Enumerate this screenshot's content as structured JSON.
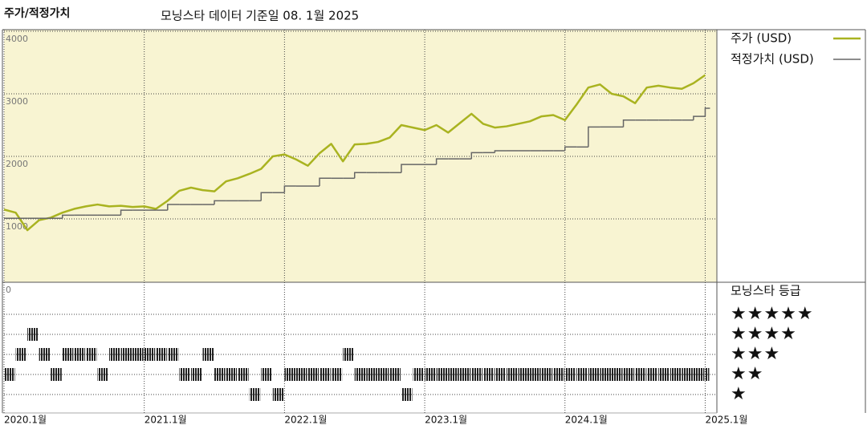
{
  "chart_data": [
    {
      "type": "line",
      "title": "주가/적정가치",
      "subtitle": "모닝스타 데이터 기준일 08. 1월 2025",
      "x": [
        "2020-01",
        "2020-02",
        "2020-03",
        "2020-04",
        "2020-05",
        "2020-06",
        "2020-07",
        "2020-08",
        "2020-09",
        "2020-10",
        "2020-11",
        "2020-12",
        "2021-01",
        "2021-02",
        "2021-03",
        "2021-04",
        "2021-05",
        "2021-06",
        "2021-07",
        "2021-08",
        "2021-09",
        "2021-10",
        "2021-11",
        "2021-12",
        "2022-01",
        "2022-02",
        "2022-03",
        "2022-04",
        "2022-05",
        "2022-06",
        "2022-07",
        "2022-08",
        "2022-09",
        "2022-10",
        "2022-11",
        "2022-12",
        "2023-01",
        "2023-02",
        "2023-03",
        "2023-04",
        "2023-05",
        "2023-06",
        "2023-07",
        "2023-08",
        "2023-09",
        "2023-10",
        "2023-11",
        "2023-12",
        "2024-01",
        "2024-02",
        "2024-03",
        "2024-04",
        "2024-05",
        "2024-06",
        "2024-07",
        "2024-08",
        "2024-09",
        "2024-10",
        "2024-11",
        "2024-12",
        "2025-01"
      ],
      "xlim": [
        "2020-01",
        "2025-02"
      ],
      "xticks": [
        "2020-01",
        "2021-01",
        "2022-01",
        "2023-01",
        "2024-01",
        "2025-01"
      ],
      "ylim": [
        0,
        4000
      ],
      "yticks": [
        1000,
        2000,
        3000,
        4000
      ],
      "grid": true,
      "series": [
        {
          "name": "주가 (USD)",
          "color": "#a9b320",
          "style": "line",
          "values": [
            1150,
            1100,
            820,
            980,
            1020,
            1100,
            1160,
            1200,
            1230,
            1200,
            1210,
            1190,
            1200,
            1160,
            1290,
            1450,
            1500,
            1460,
            1440,
            1600,
            1650,
            1720,
            1800,
            2000,
            2030,
            1950,
            1850,
            2050,
            2200,
            1920,
            2190,
            2200,
            2230,
            2300,
            2500,
            2460,
            2420,
            2500,
            2380,
            2530,
            2680,
            2520,
            2460,
            2480,
            2520,
            2560,
            2640,
            2660,
            2580,
            2830,
            3100,
            3150,
            3000,
            2960,
            2850,
            3100,
            3130,
            3100,
            3080,
            3170,
            3300
          ]
        },
        {
          "name": "적정가치 (USD)",
          "color": "#666666",
          "style": "step",
          "values": [
            1010,
            1010,
            1010,
            1010,
            1010,
            1060,
            1060,
            1060,
            1060,
            1060,
            1140,
            1140,
            1140,
            1140,
            1230,
            1230,
            1230,
            1230,
            1290,
            1290,
            1290,
            1290,
            1420,
            1420,
            1525,
            1525,
            1525,
            1650,
            1650,
            1650,
            1740,
            1740,
            1740,
            1740,
            1870,
            1870,
            1870,
            1960,
            1960,
            1960,
            2060,
            2060,
            2090,
            2090,
            2090,
            2090,
            2090,
            2090,
            2150,
            2150,
            2470,
            2470,
            2470,
            2580,
            2580,
            2580,
            2580,
            2580,
            2580,
            2640,
            2770
          ]
        }
      ]
    },
    {
      "type": "rating",
      "title": "모닝스타 등급",
      "corner_label": "0",
      "levels": [
        "★★★★★",
        "★★★★",
        "★★★",
        "★★",
        "★"
      ],
      "color": "#222222",
      "x": [
        "2020-01",
        "2020-02",
        "2020-03",
        "2020-04",
        "2020-05",
        "2020-06",
        "2020-07",
        "2020-08",
        "2020-09",
        "2020-10",
        "2020-11",
        "2020-12",
        "2021-01",
        "2021-02",
        "2021-03",
        "2021-04",
        "2021-05",
        "2021-06",
        "2021-07",
        "2021-08",
        "2021-09",
        "2021-10",
        "2021-11",
        "2021-12",
        "2022-01",
        "2022-02",
        "2022-03",
        "2022-04",
        "2022-05",
        "2022-06",
        "2022-07",
        "2022-08",
        "2022-09",
        "2022-10",
        "2022-11",
        "2022-12",
        "2023-01",
        "2023-02",
        "2023-03",
        "2023-04",
        "2023-05",
        "2023-06",
        "2023-07",
        "2023-08",
        "2023-09",
        "2023-10",
        "2023-11",
        "2023-12",
        "2024-01",
        "2024-02",
        "2024-03",
        "2024-04",
        "2024-05",
        "2024-06",
        "2024-07",
        "2024-08",
        "2024-09",
        "2024-10",
        "2024-11",
        "2024-12",
        "2025-01"
      ],
      "xlim": [
        "2020-01",
        "2025-02"
      ],
      "xticks": [
        {
          "value": "2020-01",
          "label": "2020.1월"
        },
        {
          "value": "2021-01",
          "label": "2021.1월"
        },
        {
          "value": "2022-01",
          "label": "2022.1월"
        },
        {
          "value": "2023-01",
          "label": "2023.1월"
        },
        {
          "value": "2024-01",
          "label": "2024.1월"
        },
        {
          "value": "2025-01",
          "label": "2025.1월"
        }
      ],
      "values": [
        2,
        3,
        4,
        3,
        2,
        3,
        3,
        3,
        2,
        3,
        3,
        3,
        3,
        3,
        3,
        2,
        2,
        3,
        2,
        2,
        2,
        1,
        2,
        1,
        2,
        2,
        2,
        2,
        2,
        3,
        2,
        2,
        2,
        2,
        1,
        2,
        2,
        2,
        2,
        2,
        2,
        2,
        2,
        2,
        2,
        2,
        2,
        2,
        2,
        2,
        2,
        2,
        2,
        2,
        2,
        2,
        2,
        2,
        2,
        2,
        2
      ]
    }
  ]
}
